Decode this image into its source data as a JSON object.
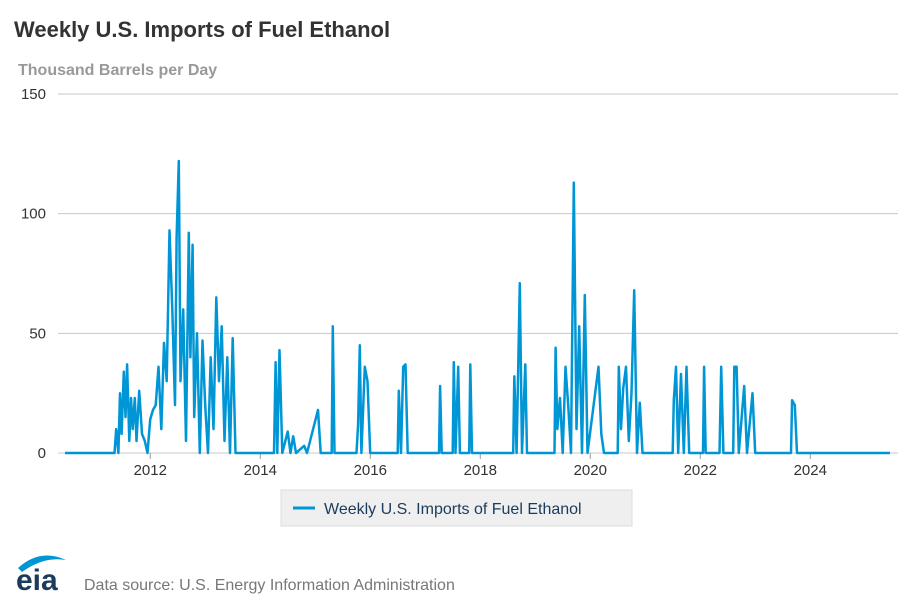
{
  "chart_data": {
    "type": "line",
    "title": "Weekly U.S. Imports of Fuel Ethanol",
    "subtitle": "Thousand Barrels per Day",
    "source": "Data source: U.S. Energy Information Administration",
    "xlim": [
      2010.45,
      2025.45
    ],
    "xticks": [
      2012,
      2014,
      2016,
      2018,
      2020,
      2022,
      2024
    ],
    "ylim": [
      0,
      150
    ],
    "yticks": [
      0,
      50,
      100,
      150
    ],
    "grid": true,
    "legend": "bottom",
    "x": [
      2010.45,
      2011.35,
      2011.38,
      2011.42,
      2011.45,
      2011.48,
      2011.52,
      2011.55,
      2011.58,
      2011.62,
      2011.65,
      2011.68,
      2011.72,
      2011.75,
      2011.8,
      2011.85,
      2011.9,
      2011.95,
      2012.0,
      2012.05,
      2012.1,
      2012.15,
      2012.2,
      2012.25,
      2012.3,
      2012.35,
      2012.4,
      2012.45,
      2012.48,
      2012.52,
      2012.55,
      2012.6,
      2012.65,
      2012.7,
      2012.73,
      2012.77,
      2012.8,
      2012.85,
      2012.9,
      2012.95,
      2013.0,
      2013.05,
      2013.1,
      2013.15,
      2013.2,
      2013.25,
      2013.3,
      2013.35,
      2013.4,
      2013.45,
      2013.5,
      2013.55,
      2014.25,
      2014.28,
      2014.31,
      2014.35,
      2014.4,
      2014.5,
      2014.55,
      2014.6,
      2014.65,
      2014.8,
      2014.85,
      2015.05,
      2015.1,
      2015.3,
      2015.32,
      2015.35,
      2015.75,
      2015.78,
      2015.81,
      2015.84,
      2015.9,
      2015.95,
      2016.0,
      2016.5,
      2016.52,
      2016.56,
      2016.6,
      2016.64,
      2016.68,
      2017.25,
      2017.27,
      2017.3,
      2017.5,
      2017.52,
      2017.55,
      2017.6,
      2017.63,
      2017.8,
      2017.82,
      2017.85,
      2018.6,
      2018.62,
      2018.66,
      2018.72,
      2018.76,
      2018.82,
      2018.85,
      2019.35,
      2019.37,
      2019.4,
      2019.45,
      2019.5,
      2019.55,
      2019.6,
      2019.65,
      2019.7,
      2019.75,
      2019.8,
      2019.85,
      2019.9,
      2019.95,
      2020.15,
      2020.2,
      2020.25,
      2020.5,
      2020.52,
      2020.56,
      2020.6,
      2020.65,
      2020.7,
      2020.75,
      2020.8,
      2020.85,
      2020.9,
      2020.95,
      2021.5,
      2021.52,
      2021.56,
      2021.6,
      2021.65,
      2021.7,
      2021.75,
      2021.8,
      2022.05,
      2022.07,
      2022.1,
      2022.35,
      2022.38,
      2022.42,
      2022.6,
      2022.62,
      2022.66,
      2022.7,
      2022.8,
      2022.85,
      2022.95,
      2023.0,
      2023.65,
      2023.67,
      2023.72,
      2023.76,
      2025.45
    ],
    "series": [
      {
        "name": "Weekly U.S. Imports of Fuel Ethanol",
        "color": "#0096d6",
        "values": [
          0,
          0,
          10,
          0,
          25,
          8,
          34,
          15,
          37,
          5,
          23,
          10,
          23,
          5,
          26,
          8,
          5,
          0,
          14,
          18,
          20,
          36,
          10,
          46,
          30,
          93,
          60,
          20,
          90,
          122,
          30,
          60,
          5,
          92,
          40,
          87,
          15,
          50,
          0,
          47,
          20,
          0,
          40,
          10,
          65,
          30,
          53,
          5,
          40,
          0,
          48,
          0,
          0,
          38,
          0,
          43,
          0,
          9,
          0,
          7,
          0,
          3,
          0,
          18,
          0,
          0,
          53,
          0,
          0,
          12,
          45,
          0,
          36,
          30,
          0,
          0,
          26,
          0,
          36,
          37,
          0,
          0,
          28,
          0,
          0,
          38,
          0,
          36,
          0,
          0,
          37,
          0,
          0,
          32,
          0,
          71,
          0,
          37,
          0,
          0,
          44,
          10,
          23,
          0,
          36,
          20,
          0,
          113,
          10,
          53,
          0,
          66,
          0,
          36,
          8,
          0,
          0,
          36,
          10,
          27,
          36,
          5,
          25,
          68,
          0,
          21,
          0,
          0,
          22,
          36,
          0,
          33,
          0,
          36,
          0,
          0,
          36,
          0,
          0,
          36,
          0,
          0,
          36,
          36,
          0,
          28,
          0,
          25,
          0,
          0,
          22,
          20,
          0,
          0
        ]
      }
    ]
  }
}
